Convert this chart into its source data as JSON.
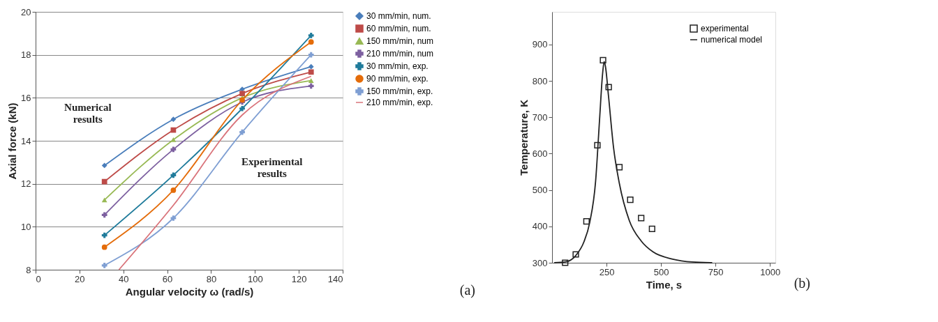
{
  "chart_data": [
    {
      "type": "line",
      "xlabel": "Angular velocity ω (rad/s)",
      "ylabel": "Axial force (kN)",
      "xlim": [
        0,
        140
      ],
      "xticks": [
        0,
        20,
        40,
        60,
        80,
        100,
        120,
        140
      ],
      "ylim": [
        8,
        20
      ],
      "yticks": [
        8,
        10,
        12,
        14,
        16,
        18,
        20
      ],
      "grid": "y",
      "legend": "right",
      "series": [
        {
          "name": "30 mm/min, num.",
          "color": "#4a7ebb",
          "marker": "diamond",
          "x": [
            31.4,
            62.8,
            94.2,
            125.6
          ],
          "values": [
            12.85,
            15.0,
            16.4,
            17.45
          ]
        },
        {
          "name": "60 mm/min, num.",
          "color": "#be4b48",
          "marker": "square",
          "x": [
            31.4,
            62.8,
            94.2,
            125.6
          ],
          "values": [
            12.1,
            14.5,
            16.2,
            17.2
          ]
        },
        {
          "name": "150 mm/min, num",
          "color": "#98b954",
          "marker": "triangle",
          "x": [
            31.4,
            62.8,
            94.2,
            125.6
          ],
          "values": [
            11.25,
            14.05,
            16.0,
            16.8
          ]
        },
        {
          "name": "210 mm/min, num",
          "color": "#7d60a0",
          "marker": "cross",
          "x": [
            31.4,
            62.8,
            94.2,
            125.6
          ],
          "values": [
            10.55,
            13.6,
            15.8,
            16.55
          ]
        },
        {
          "name": "30 mm/min, exp.",
          "color": "#1f7b9b",
          "marker": "cross",
          "x": [
            31.4,
            62.8,
            94.2,
            125.6
          ],
          "values": [
            9.6,
            12.4,
            15.5,
            18.9
          ]
        },
        {
          "name": "90 mm/min, exp.",
          "color": "#e46c0a",
          "marker": "circle",
          "x": [
            31.4,
            62.8,
            94.2,
            125.6
          ],
          "values": [
            9.05,
            11.7,
            15.9,
            18.6
          ]
        },
        {
          "name": "150 mm/min, exp.",
          "color": "#7f9fd3",
          "marker": "cross",
          "x": [
            31.4,
            62.8,
            94.2,
            125.6
          ],
          "values": [
            8.2,
            10.4,
            14.4,
            18.0
          ]
        },
        {
          "name": "210 mm/min, exp.",
          "color": "#d9737a",
          "marker": "none",
          "x": [
            38,
            62.8,
            94.2,
            125.6
          ],
          "values": [
            8.0,
            11.0,
            15.2,
            17.0
          ]
        }
      ],
      "annotations": [
        "Numerical results",
        "Experimental results",
        "(a)"
      ]
    },
    {
      "type": "scatter",
      "xlabel": "Time, s",
      "ylabel": "Temperature, K",
      "xlim": [
        0,
        1025
      ],
      "xticks": [
        250,
        500,
        750,
        {
          "value": 1000,
          "label": "1000"
        }
      ],
      "ylim": [
        300,
        990
      ],
      "yticks": [
        300,
        400,
        500,
        600,
        700,
        800,
        900
      ],
      "legend": "top right",
      "series": [
        {
          "name": "experimental",
          "type": "scatter",
          "marker": "square",
          "color": "#222222",
          "x": [
            60,
            109,
            158,
            208,
            234,
            260,
            309,
            359,
            409,
            459
          ],
          "values": [
            300,
            323,
            414,
            623,
            857,
            783,
            563,
            473,
            423,
            393
          ]
        },
        {
          "name": "numerical model",
          "type": "line",
          "color": "#222222",
          "x": [
            10,
            60,
            109,
            146,
            173,
            200,
            218,
            232,
            239,
            245,
            259,
            282,
            309,
            354,
            409,
            463,
            554,
            645,
            735
          ],
          "values": [
            300,
            302,
            320,
            357,
            411,
            525,
            693,
            820,
            853,
            840,
            759,
            618,
            518,
            417,
            360,
            330,
            310,
            302,
            300
          ]
        }
      ],
      "annotations": [
        "(b)"
      ]
    }
  ]
}
